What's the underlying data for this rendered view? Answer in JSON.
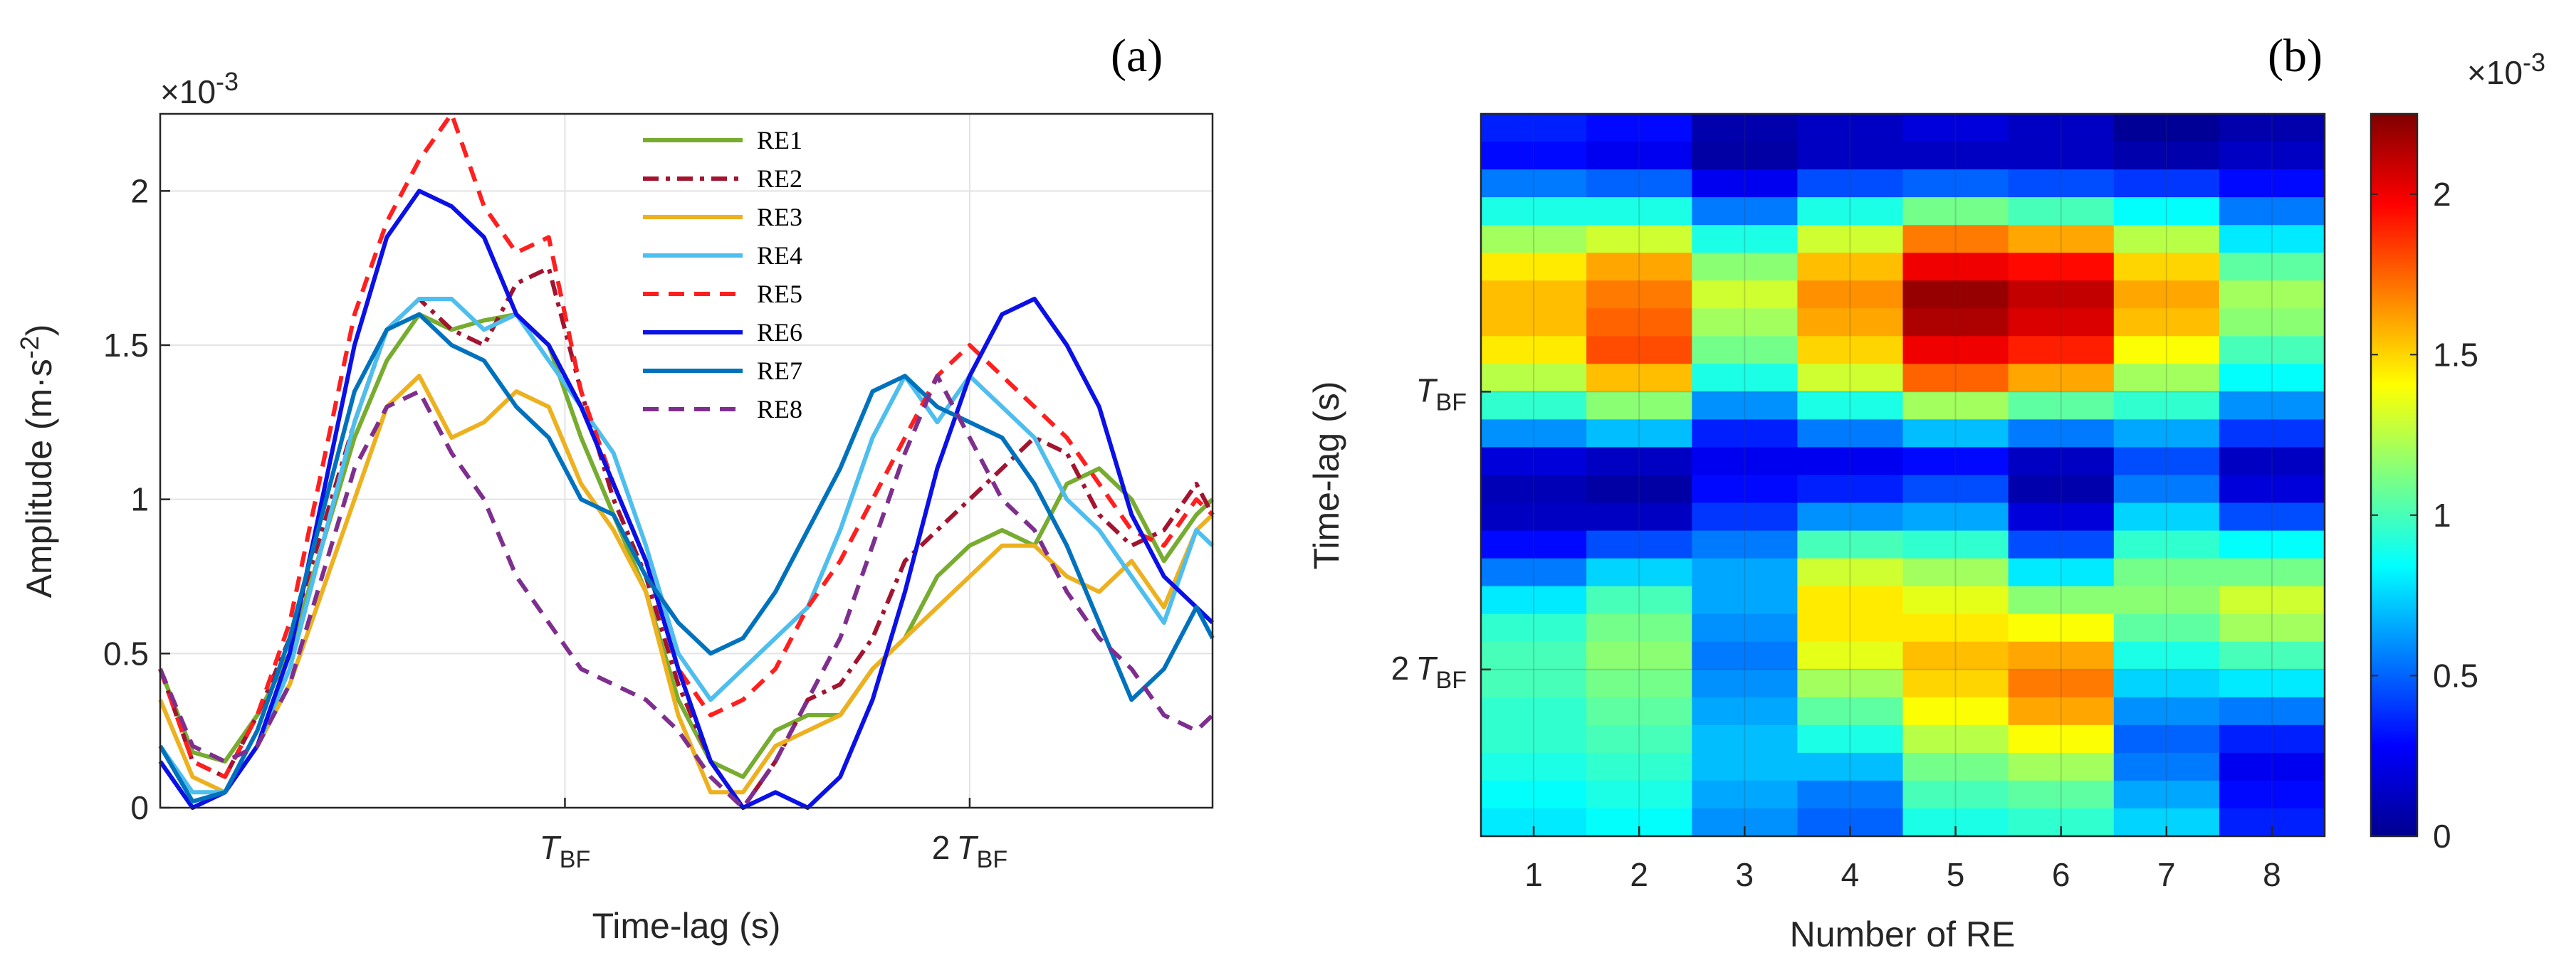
{
  "chart_data": [
    {
      "type": "line",
      "panel_label": "(a)",
      "xlabel": "Time-lag (s)",
      "ylabel": "Amplitude (m·s",
      "ylabel_sup": "-2",
      "ylabel_close": ")",
      "exponent_base": "×10",
      "exponent_power": "-3",
      "xlim": [
        0,
        2.6
      ],
      "ylim": [
        0,
        2.25
      ],
      "xticks": [
        {
          "value": 1,
          "prefix": "",
          "main": "T",
          "sub": "BF"
        },
        {
          "value": 2,
          "prefix": "2",
          "main": "T",
          "sub": "BF"
        }
      ],
      "yticks": [
        {
          "value": 0,
          "label": "0"
        },
        {
          "value": 0.5,
          "label": "0.5"
        },
        {
          "value": 1,
          "label": "1"
        },
        {
          "value": 1.5,
          "label": "1.5"
        },
        {
          "value": 2,
          "label": "2"
        }
      ],
      "grid": true,
      "legend_position": "top-center",
      "series": [
        {
          "name": "RE1",
          "color": "#77AC30",
          "dash": "solid",
          "x": [
            0,
            0.08,
            0.16,
            0.24,
            0.32,
            0.4,
            0.48,
            0.56,
            0.64,
            0.72,
            0.8,
            0.88,
            0.96,
            1.04,
            1.12,
            1.2,
            1.28,
            1.36,
            1.44,
            1.52,
            1.6,
            1.68,
            1.76,
            1.84,
            1.92,
            2.0,
            2.08,
            2.16,
            2.24,
            2.32,
            2.4,
            2.48,
            2.56,
            2.6
          ],
          "y": [
            0.45,
            0.18,
            0.15,
            0.3,
            0.5,
            0.85,
            1.2,
            1.45,
            1.6,
            1.55,
            1.58,
            1.6,
            1.5,
            1.2,
            0.95,
            0.7,
            0.35,
            0.15,
            0.1,
            0.25,
            0.3,
            0.3,
            0.45,
            0.55,
            0.75,
            0.85,
            0.9,
            0.85,
            1.05,
            1.1,
            1.0,
            0.8,
            0.95,
            1.0
          ]
        },
        {
          "name": "RE2",
          "color": "#A2142F",
          "dash": "dashdot",
          "x": [
            0,
            0.08,
            0.16,
            0.24,
            0.32,
            0.4,
            0.48,
            0.56,
            0.64,
            0.72,
            0.8,
            0.88,
            0.96,
            1.04,
            1.12,
            1.2,
            1.28,
            1.36,
            1.44,
            1.52,
            1.6,
            1.68,
            1.76,
            1.84,
            1.92,
            2.0,
            2.08,
            2.16,
            2.24,
            2.32,
            2.4,
            2.48,
            2.56,
            2.6
          ],
          "y": [
            0.45,
            0.15,
            0.1,
            0.3,
            0.55,
            0.9,
            1.25,
            1.55,
            1.65,
            1.55,
            1.5,
            1.7,
            1.75,
            1.35,
            1.0,
            0.75,
            0.4,
            0.15,
            0.0,
            0.15,
            0.35,
            0.4,
            0.55,
            0.8,
            0.9,
            1.0,
            1.1,
            1.2,
            1.15,
            0.95,
            0.85,
            0.9,
            1.05,
            0.95
          ]
        },
        {
          "name": "RE3",
          "color": "#EDB120",
          "dash": "solid",
          "x": [
            0,
            0.08,
            0.16,
            0.24,
            0.32,
            0.4,
            0.48,
            0.56,
            0.64,
            0.72,
            0.8,
            0.88,
            0.96,
            1.04,
            1.12,
            1.2,
            1.28,
            1.36,
            1.44,
            1.52,
            1.6,
            1.68,
            1.76,
            1.84,
            1.92,
            2.0,
            2.08,
            2.16,
            2.24,
            2.32,
            2.4,
            2.48,
            2.56,
            2.6
          ],
          "y": [
            0.35,
            0.1,
            0.05,
            0.2,
            0.4,
            0.7,
            1.0,
            1.3,
            1.4,
            1.2,
            1.25,
            1.35,
            1.3,
            1.05,
            0.9,
            0.7,
            0.3,
            0.05,
            0.05,
            0.2,
            0.25,
            0.3,
            0.45,
            0.55,
            0.65,
            0.75,
            0.85,
            0.85,
            0.75,
            0.7,
            0.8,
            0.65,
            0.9,
            0.95
          ]
        },
        {
          "name": "RE4",
          "color": "#4DBEEE",
          "dash": "solid",
          "x": [
            0,
            0.08,
            0.16,
            0.24,
            0.32,
            0.4,
            0.48,
            0.56,
            0.64,
            0.72,
            0.8,
            0.88,
            0.96,
            1.04,
            1.12,
            1.2,
            1.28,
            1.36,
            1.44,
            1.52,
            1.6,
            1.68,
            1.76,
            1.84,
            1.92,
            2.0,
            2.08,
            2.16,
            2.24,
            2.32,
            2.4,
            2.48,
            2.56,
            2.6
          ],
          "y": [
            0.2,
            0.05,
            0.05,
            0.2,
            0.45,
            0.85,
            1.25,
            1.55,
            1.65,
            1.65,
            1.55,
            1.6,
            1.45,
            1.3,
            1.15,
            0.85,
            0.5,
            0.35,
            0.45,
            0.55,
            0.65,
            0.9,
            1.2,
            1.4,
            1.25,
            1.4,
            1.3,
            1.2,
            1.0,
            0.9,
            0.75,
            0.6,
            0.9,
            0.85
          ]
        },
        {
          "name": "RE5",
          "color": "#FF1F1F",
          "dash": "dash",
          "x": [
            0,
            0.08,
            0.16,
            0.24,
            0.32,
            0.4,
            0.48,
            0.56,
            0.64,
            0.72,
            0.8,
            0.88,
            0.96,
            1.04,
            1.12,
            1.2,
            1.28,
            1.36,
            1.44,
            1.52,
            1.6,
            1.68,
            1.76,
            1.84,
            1.92,
            2.0,
            2.08,
            2.16,
            2.24,
            2.32,
            2.4,
            2.48,
            2.56,
            2.6
          ],
          "y": [
            0.45,
            0.15,
            0.1,
            0.3,
            0.6,
            1.1,
            1.6,
            1.9,
            2.1,
            2.25,
            1.95,
            1.8,
            1.85,
            1.35,
            1.05,
            0.8,
            0.45,
            0.3,
            0.35,
            0.45,
            0.65,
            0.8,
            1.0,
            1.2,
            1.4,
            1.5,
            1.4,
            1.3,
            1.2,
            1.05,
            0.9,
            0.85,
            1.0,
            0.95
          ]
        },
        {
          "name": "RE6",
          "color": "#0A10E6",
          "dash": "solid",
          "x": [
            0,
            0.08,
            0.16,
            0.24,
            0.32,
            0.4,
            0.48,
            0.56,
            0.64,
            0.72,
            0.8,
            0.88,
            0.96,
            1.04,
            1.12,
            1.2,
            1.28,
            1.36,
            1.44,
            1.52,
            1.6,
            1.68,
            1.76,
            1.84,
            1.92,
            2.0,
            2.08,
            2.16,
            2.24,
            2.32,
            2.4,
            2.48,
            2.56,
            2.6
          ],
          "y": [
            0.15,
            0.0,
            0.05,
            0.2,
            0.5,
            1.0,
            1.5,
            1.85,
            2.0,
            1.95,
            1.85,
            1.6,
            1.5,
            1.3,
            1.05,
            0.8,
            0.45,
            0.15,
            0.0,
            0.05,
            0.0,
            0.1,
            0.35,
            0.7,
            1.1,
            1.4,
            1.6,
            1.65,
            1.5,
            1.3,
            0.95,
            0.75,
            0.65,
            0.6
          ]
        },
        {
          "name": "RE7",
          "color": "#0072BD",
          "dash": "solid",
          "x": [
            0,
            0.08,
            0.16,
            0.24,
            0.32,
            0.4,
            0.48,
            0.56,
            0.64,
            0.72,
            0.8,
            0.88,
            0.96,
            1.04,
            1.12,
            1.2,
            1.28,
            1.36,
            1.44,
            1.52,
            1.6,
            1.68,
            1.76,
            1.84,
            1.92,
            2.0,
            2.08,
            2.16,
            2.24,
            2.32,
            2.4,
            2.48,
            2.56,
            2.6
          ],
          "y": [
            0.2,
            0.02,
            0.05,
            0.25,
            0.55,
            0.95,
            1.35,
            1.55,
            1.6,
            1.5,
            1.45,
            1.3,
            1.2,
            1.0,
            0.95,
            0.75,
            0.6,
            0.5,
            0.55,
            0.7,
            0.9,
            1.1,
            1.35,
            1.4,
            1.3,
            1.25,
            1.2,
            1.05,
            0.85,
            0.6,
            0.35,
            0.45,
            0.65,
            0.55
          ]
        },
        {
          "name": "RE8",
          "color": "#7E2F8E",
          "dash": "dash",
          "x": [
            0,
            0.08,
            0.16,
            0.24,
            0.32,
            0.4,
            0.48,
            0.56,
            0.64,
            0.72,
            0.8,
            0.88,
            0.96,
            1.04,
            1.12,
            1.2,
            1.28,
            1.36,
            1.44,
            1.52,
            1.6,
            1.68,
            1.76,
            1.84,
            1.92,
            2.0,
            2.08,
            2.16,
            2.24,
            2.32,
            2.4,
            2.48,
            2.56,
            2.6
          ],
          "y": [
            0.45,
            0.2,
            0.15,
            0.2,
            0.4,
            0.75,
            1.1,
            1.3,
            1.35,
            1.15,
            1.0,
            0.75,
            0.6,
            0.45,
            0.4,
            0.35,
            0.25,
            0.1,
            0.0,
            0.15,
            0.35,
            0.55,
            0.85,
            1.15,
            1.4,
            1.2,
            1.0,
            0.9,
            0.7,
            0.55,
            0.45,
            0.3,
            0.25,
            0.3
          ]
        }
      ]
    },
    {
      "type": "heatmap",
      "panel_label": "(b)",
      "xlabel": "Number of RE",
      "ylabel": "Time-lag (s)",
      "categories": [
        "1",
        "2",
        "3",
        "4",
        "5",
        "6",
        "7",
        "8"
      ],
      "ylim": [
        0,
        2.6
      ],
      "yticks": [
        {
          "value": 1,
          "prefix": "",
          "main": "T",
          "sub": "BF"
        },
        {
          "value": 2,
          "prefix": "2",
          "main": "T",
          "sub": "BF"
        }
      ],
      "y_direction": "reversed",
      "colorbar": {
        "exponent_base": "×10",
        "exponent_power": "-3",
        "range": [
          0,
          2.25
        ],
        "ticks": [
          {
            "value": 0,
            "label": "0"
          },
          {
            "value": 0.5,
            "label": "0.5"
          },
          {
            "value": 1,
            "label": "1"
          },
          {
            "value": 1.5,
            "label": "1.5"
          },
          {
            "value": 2,
            "label": "2"
          }
        ]
      },
      "rows_time": [
        0.0,
        0.1,
        0.2,
        0.3,
        0.4,
        0.5,
        0.6,
        0.7,
        0.8,
        0.9,
        1.0,
        1.1,
        1.2,
        1.3,
        1.4,
        1.5,
        1.6,
        1.7,
        1.8,
        1.9,
        2.0,
        2.1,
        2.2,
        2.3,
        2.4,
        2.5
      ],
      "values": [
        [
          0.35,
          0.3,
          0.1,
          0.15,
          0.2,
          0.15,
          0.05,
          0.1
        ],
        [
          0.3,
          0.25,
          0.08,
          0.15,
          0.15,
          0.15,
          0.1,
          0.15
        ],
        [
          0.55,
          0.5,
          0.25,
          0.45,
          0.5,
          0.45,
          0.4,
          0.3
        ],
        [
          0.9,
          0.9,
          0.55,
          0.9,
          1.1,
          1.0,
          0.85,
          0.55
        ],
        [
          1.2,
          1.3,
          0.9,
          1.3,
          1.7,
          1.6,
          1.25,
          0.8
        ],
        [
          1.45,
          1.6,
          1.15,
          1.55,
          2.0,
          1.95,
          1.5,
          1.05
        ],
        [
          1.55,
          1.7,
          1.3,
          1.65,
          2.2,
          2.1,
          1.6,
          1.2
        ],
        [
          1.55,
          1.75,
          1.2,
          1.6,
          2.15,
          2.05,
          1.55,
          1.15
        ],
        [
          1.45,
          1.8,
          1.1,
          1.5,
          2.0,
          1.9,
          1.4,
          1.0
        ],
        [
          1.25,
          1.55,
          0.9,
          1.3,
          1.75,
          1.6,
          1.2,
          0.85
        ],
        [
          0.95,
          1.15,
          0.6,
          0.9,
          1.2,
          1.05,
          0.95,
          0.6
        ],
        [
          0.6,
          0.7,
          0.35,
          0.55,
          0.7,
          0.55,
          0.65,
          0.4
        ],
        [
          0.2,
          0.15,
          0.25,
          0.25,
          0.3,
          0.15,
          0.45,
          0.15
        ],
        [
          0.12,
          0.08,
          0.3,
          0.35,
          0.45,
          0.1,
          0.55,
          0.2
        ],
        [
          0.15,
          0.15,
          0.4,
          0.6,
          0.65,
          0.2,
          0.75,
          0.45
        ],
        [
          0.3,
          0.45,
          0.55,
          1.0,
          0.95,
          0.45,
          0.95,
          0.85
        ],
        [
          0.55,
          0.75,
          0.65,
          1.3,
          1.2,
          0.8,
          1.1,
          1.1
        ],
        [
          0.8,
          1.0,
          0.65,
          1.45,
          1.35,
          1.15,
          1.15,
          1.3
        ],
        [
          0.95,
          1.1,
          0.6,
          1.45,
          1.45,
          1.4,
          1.05,
          1.2
        ],
        [
          1.0,
          1.15,
          0.55,
          1.35,
          1.55,
          1.6,
          0.9,
          1.0
        ],
        [
          1.0,
          1.1,
          0.6,
          1.2,
          1.5,
          1.7,
          0.75,
          0.8
        ],
        [
          0.95,
          1.05,
          0.65,
          1.05,
          1.4,
          1.6,
          0.6,
          0.55
        ],
        [
          0.95,
          1.0,
          0.7,
          0.9,
          1.25,
          1.4,
          0.5,
          0.35
        ],
        [
          0.9,
          0.95,
          0.7,
          0.7,
          1.1,
          1.2,
          0.55,
          0.25
        ],
        [
          0.85,
          0.9,
          0.65,
          0.55,
          1.0,
          1.05,
          0.65,
          0.3
        ],
        [
          0.8,
          0.85,
          0.6,
          0.5,
          0.9,
          0.95,
          0.75,
          0.35
        ]
      ]
    }
  ]
}
